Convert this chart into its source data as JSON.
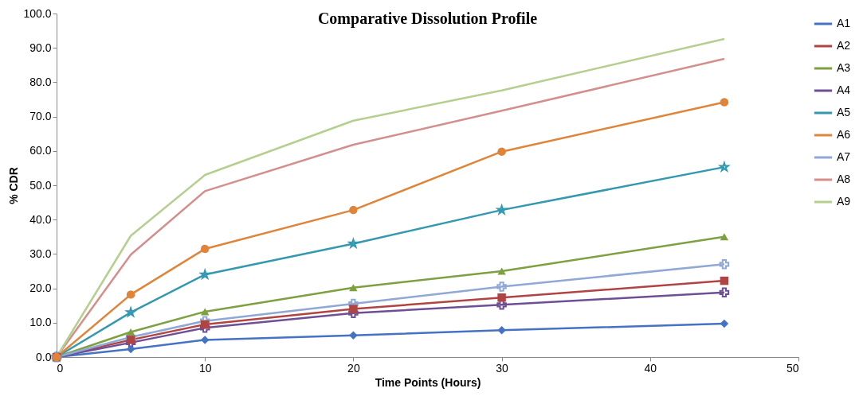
{
  "chart_data": {
    "type": "line",
    "title": "Comparative Dissolution Profile",
    "xlabel": "Time Points (Hours)",
    "ylabel": "% CDR",
    "x": [
      0,
      5,
      10,
      20,
      30,
      45
    ],
    "xlim": [
      0,
      50
    ],
    "xticks": [
      0,
      10,
      20,
      30,
      40,
      50
    ],
    "ylim": [
      0,
      100
    ],
    "yticks": [
      {
        "value": 0,
        "label": "0.0"
      },
      {
        "value": 10,
        "label": "10.0"
      },
      {
        "value": 20,
        "label": "20.0"
      },
      {
        "value": 30,
        "label": "30.0"
      },
      {
        "value": 40,
        "label": "40.0"
      },
      {
        "value": 50,
        "label": "50.0"
      },
      {
        "value": 60,
        "label": "60.0"
      },
      {
        "value": 70,
        "label": "70.0"
      },
      {
        "value": 80,
        "label": "80.0"
      },
      {
        "value": 90,
        "label": "90.0"
      },
      {
        "value": 100,
        "label": "100.0"
      }
    ],
    "grid": false,
    "legend": "right",
    "line_style": "solid",
    "series": [
      {
        "name": "A1",
        "color": "#4472c4",
        "marker": "diamond",
        "values": [
          0,
          2.3,
          5.0,
          6.3,
          7.8,
          9.7
        ]
      },
      {
        "name": "A2",
        "color": "#b04442",
        "marker": "square",
        "values": [
          0,
          5.0,
          9.5,
          14.0,
          17.3,
          22.2
        ]
      },
      {
        "name": "A3",
        "color": "#7ea041",
        "marker": "triangle",
        "values": [
          0,
          7.3,
          13.2,
          20.2,
          25.0,
          35.0
        ]
      },
      {
        "name": "A4",
        "color": "#6e4f96",
        "marker": "cross",
        "values": [
          0,
          4.2,
          8.5,
          12.8,
          15.2,
          18.8
        ]
      },
      {
        "name": "A5",
        "color": "#3398b0",
        "marker": "star",
        "values": [
          0,
          13.0,
          24.0,
          33.0,
          42.8,
          55.3
        ]
      },
      {
        "name": "A6",
        "color": "#e0843a",
        "marker": "circle",
        "values": [
          0,
          18.2,
          31.5,
          42.8,
          59.8,
          74.2
        ]
      },
      {
        "name": "A7",
        "color": "#8fa8d6",
        "marker": "cross",
        "values": [
          0,
          5.8,
          10.5,
          15.5,
          20.5,
          27.0
        ]
      },
      {
        "name": "A8",
        "color": "#d48f8d",
        "marker": "none",
        "values": [
          0,
          29.8,
          48.3,
          61.8,
          71.7,
          86.8
        ]
      },
      {
        "name": "A9",
        "color": "#b5cf8f",
        "marker": "none",
        "values": [
          0,
          35.3,
          53.0,
          68.8,
          77.6,
          92.6
        ]
      }
    ]
  }
}
